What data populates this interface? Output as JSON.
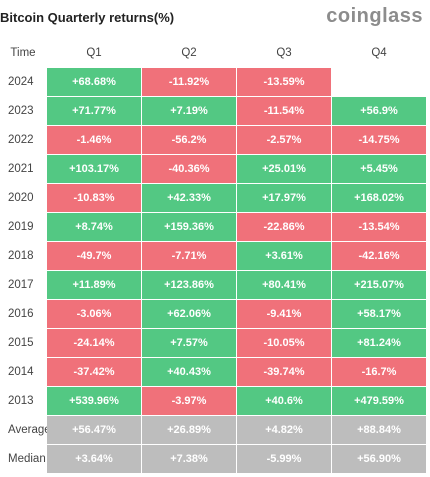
{
  "header": {
    "title": "Bitcoin Quarterly returns(%)",
    "logo": "coinglass"
  },
  "chart_data": {
    "type": "table",
    "columns": [
      "Time",
      "Q1",
      "Q2",
      "Q3",
      "Q4"
    ],
    "rows": [
      {
        "label": "2024",
        "values": [
          "+68.68%",
          "-11.92%",
          "-13.59%",
          ""
        ]
      },
      {
        "label": "2023",
        "values": [
          "+71.77%",
          "+7.19%",
          "-11.54%",
          "+56.9%"
        ]
      },
      {
        "label": "2022",
        "values": [
          "-1.46%",
          "-56.2%",
          "-2.57%",
          "-14.75%"
        ]
      },
      {
        "label": "2021",
        "values": [
          "+103.17%",
          "-40.36%",
          "+25.01%",
          "+5.45%"
        ]
      },
      {
        "label": "2020",
        "values": [
          "-10.83%",
          "+42.33%",
          "+17.97%",
          "+168.02%"
        ]
      },
      {
        "label": "2019",
        "values": [
          "+8.74%",
          "+159.36%",
          "-22.86%",
          "-13.54%"
        ]
      },
      {
        "label": "2018",
        "values": [
          "-49.7%",
          "-7.71%",
          "+3.61%",
          "-42.16%"
        ]
      },
      {
        "label": "2017",
        "values": [
          "+11.89%",
          "+123.86%",
          "+80.41%",
          "+215.07%"
        ]
      },
      {
        "label": "2016",
        "values": [
          "-3.06%",
          "+62.06%",
          "-9.41%",
          "+58.17%"
        ]
      },
      {
        "label": "2015",
        "values": [
          "-24.14%",
          "+7.57%",
          "-10.05%",
          "+81.24%"
        ]
      },
      {
        "label": "2014",
        "values": [
          "-37.42%",
          "+40.43%",
          "-39.74%",
          "-16.7%"
        ]
      },
      {
        "label": "2013",
        "values": [
          "+539.96%",
          "-3.97%",
          "+40.6%",
          "+479.59%"
        ]
      }
    ],
    "summary_rows": [
      {
        "label": "Average",
        "values": [
          "+56.47%",
          "+26.89%",
          "+4.82%",
          "+88.84%"
        ]
      },
      {
        "label": "Median",
        "values": [
          "+3.64%",
          "+7.38%",
          "-5.99%",
          "+56.90%"
        ]
      }
    ],
    "colors": {
      "positive": "#53c883",
      "negative": "#f0717a",
      "summary": "#bdbdbd"
    }
  }
}
